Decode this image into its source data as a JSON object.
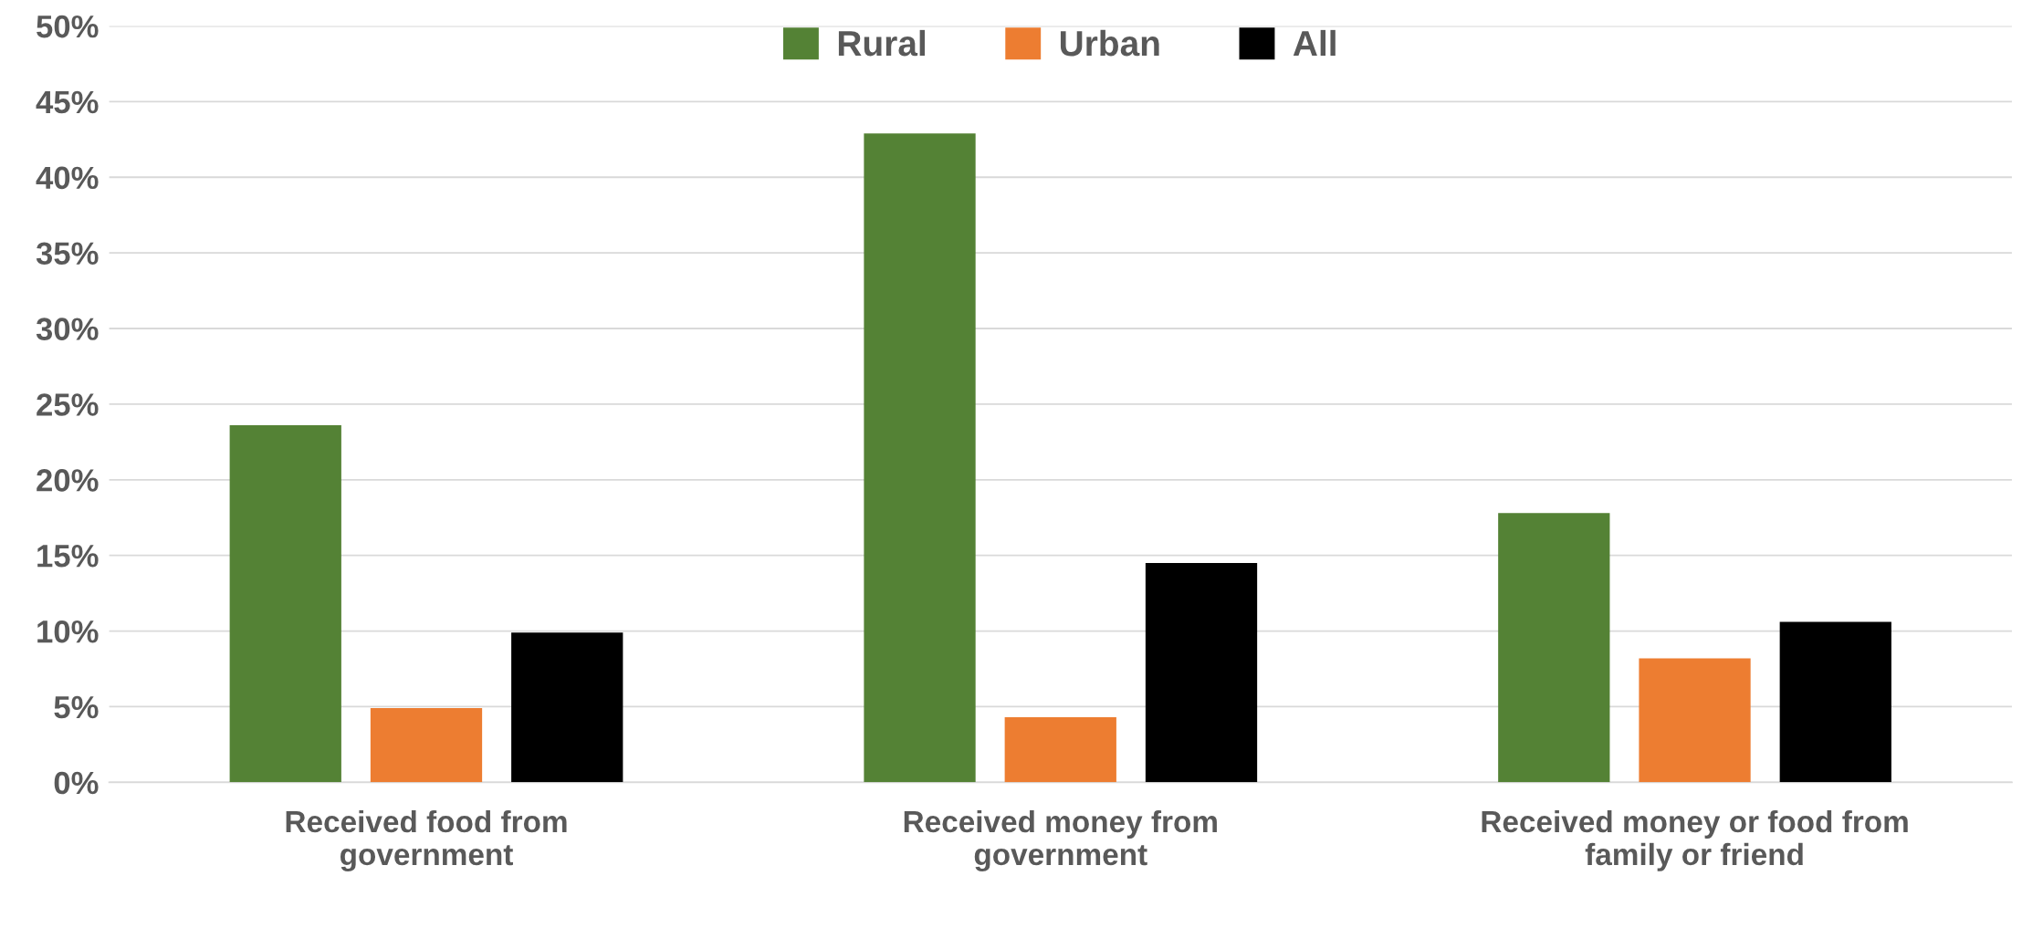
{
  "chart_data": {
    "type": "bar",
    "categories": [
      "Received food from\ngovernment",
      "Received money from\ngovernment",
      "Received money or food from\nfamily or friend"
    ],
    "series": [
      {
        "name": "Rural",
        "color": "#548235",
        "values": [
          23.6,
          42.9,
          17.8
        ]
      },
      {
        "name": "Urban",
        "color": "#ed7d31",
        "values": [
          4.9,
          4.3,
          8.2
        ]
      },
      {
        "name": "All",
        "color": "#000000",
        "values": [
          9.9,
          14.5,
          10.6
        ]
      }
    ],
    "ylim": [
      0,
      50
    ],
    "yticks": [
      {
        "value": 0,
        "label": "0%"
      },
      {
        "value": 5,
        "label": "5%"
      },
      {
        "value": 10,
        "label": "10%"
      },
      {
        "value": 15,
        "label": "15%"
      },
      {
        "value": 20,
        "label": "20%"
      },
      {
        "value": 25,
        "label": "25%"
      },
      {
        "value": 30,
        "label": "30%"
      },
      {
        "value": 35,
        "label": "35%"
      },
      {
        "value": 40,
        "label": "40%"
      },
      {
        "value": 45,
        "label": "45%"
      },
      {
        "value": 50,
        "label": "50%"
      }
    ],
    "grid": "y",
    "legend": "top"
  }
}
